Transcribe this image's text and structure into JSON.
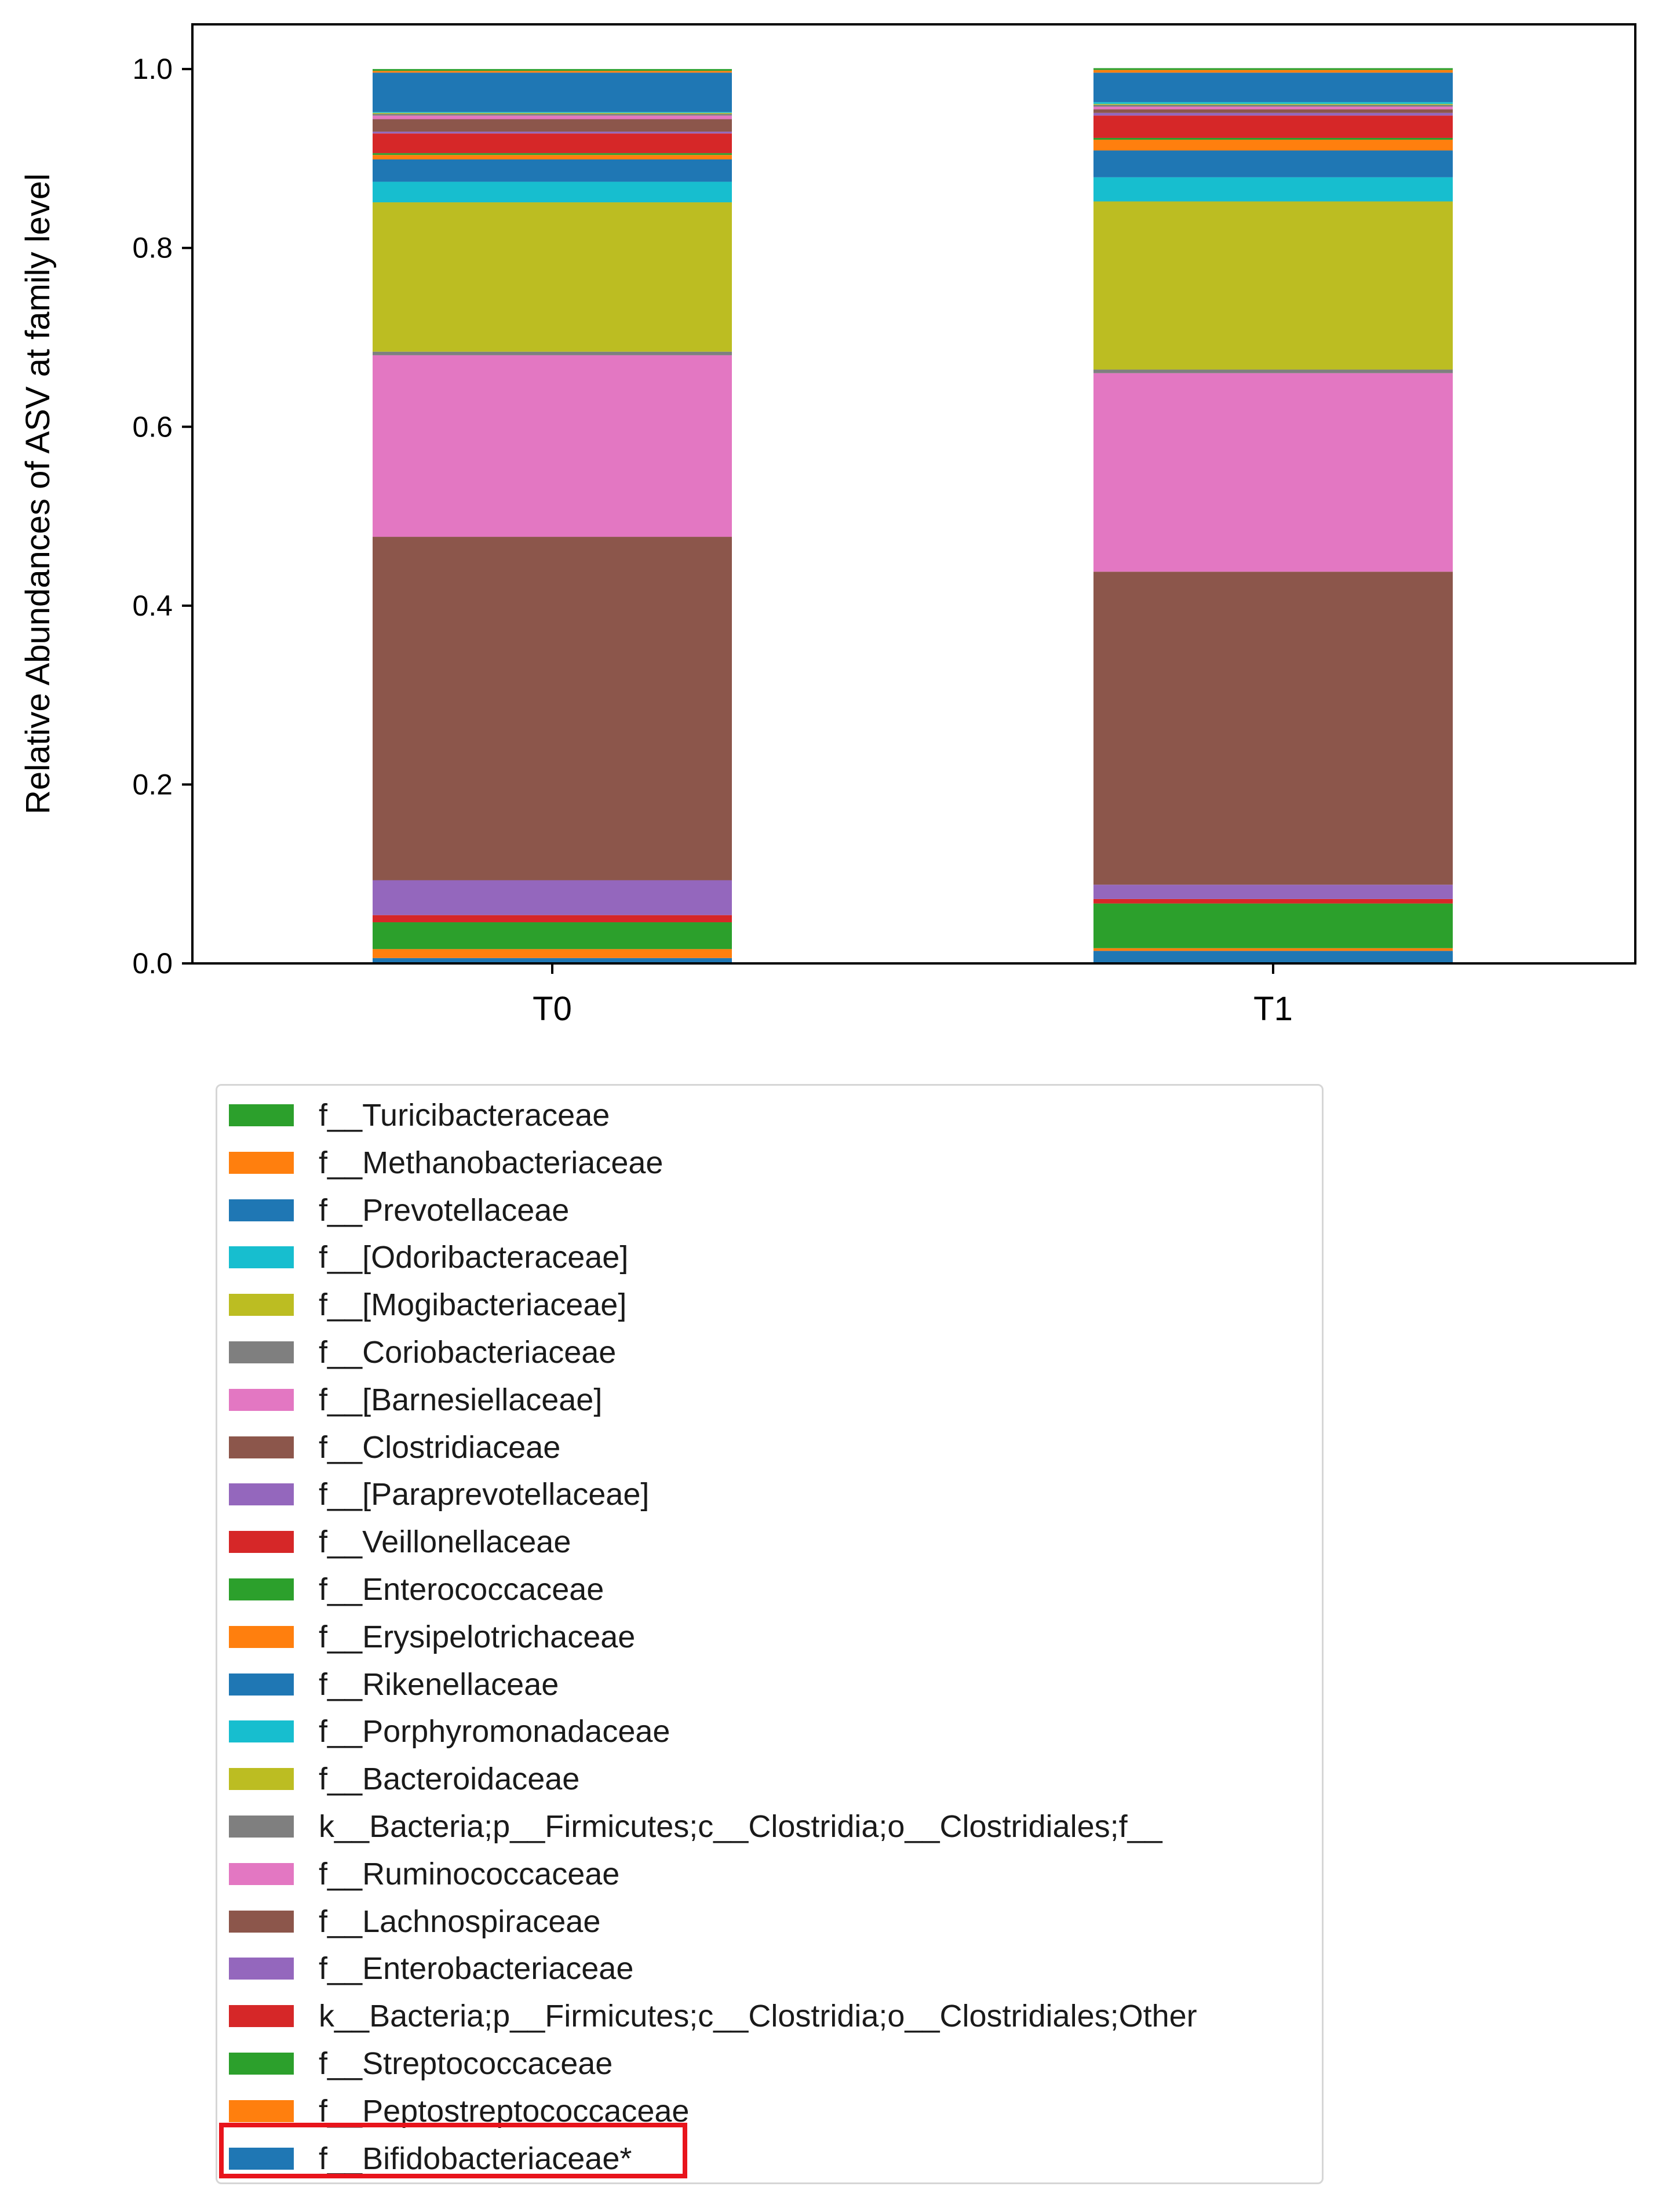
{
  "chart_data": {
    "type": "bar",
    "stacked": true,
    "title": "",
    "xlabel": "",
    "ylabel": "Relative Abundances of ASV at family level",
    "ylim": [
      0.0,
      1.05
    ],
    "yticks": [
      "0.0",
      "0.2",
      "0.4",
      "0.6",
      "0.8",
      "1.0"
    ],
    "categories": [
      "T0",
      "T1"
    ],
    "series": [
      {
        "name": "f__Bifidobacteriaceae*",
        "color": "#1f77b4",
        "values": [
          0.006,
          0.014
        ]
      },
      {
        "name": "f__Peptostreptococcaceae",
        "color": "#ff7f0e",
        "values": [
          0.01,
          0.003
        ]
      },
      {
        "name": "f__Streptococcaceae",
        "color": "#2ca02c",
        "values": [
          0.03,
          0.05
        ]
      },
      {
        "name": "k__Bacteria;p__Firmicutes;c__Clostridia;o__Clostridiales;Other",
        "color": "#d62728",
        "values": [
          0.008,
          0.005
        ]
      },
      {
        "name": "f__Enterobacteriaceae",
        "color": "#9467bd",
        "values": [
          0.039,
          0.016
        ]
      },
      {
        "name": "f__Lachnospiraceae",
        "color": "#8c564b",
        "values": [
          0.384,
          0.35
        ]
      },
      {
        "name": "f__Ruminococcaceae",
        "color": "#e377c2",
        "values": [
          0.203,
          0.222
        ]
      },
      {
        "name": "k__Bacteria;p__Firmicutes;c__Clostridia;o__Clostridiales;f__",
        "color": "#7f7f7f",
        "values": [
          0.004,
          0.004
        ]
      },
      {
        "name": "f__Bacteroidaceae",
        "color": "#bcbd22",
        "values": [
          0.167,
          0.188
        ]
      },
      {
        "name": "f__Porphyromonadaceae",
        "color": "#17becf",
        "values": [
          0.023,
          0.027
        ]
      },
      {
        "name": "f__Rikenellaceae",
        "color": "#1f77b4",
        "values": [
          0.025,
          0.03
        ]
      },
      {
        "name": "f__Erysipelotrichaceae",
        "color": "#ff7f0e",
        "values": [
          0.005,
          0.012
        ]
      },
      {
        "name": "f__Enterococcaceae",
        "color": "#2ca02c",
        "values": [
          0.002,
          0.002
        ]
      },
      {
        "name": "f__Veillonellaceae",
        "color": "#d62728",
        "values": [
          0.022,
          0.025
        ]
      },
      {
        "name": "f__[Paraprevotellaceae]",
        "color": "#9467bd",
        "values": [
          0.002,
          0.003
        ]
      },
      {
        "name": "f__Clostridiaceae",
        "color": "#8c564b",
        "values": [
          0.014,
          0.004
        ]
      },
      {
        "name": "f__[Barnesiellaceae]",
        "color": "#e377c2",
        "values": [
          0.004,
          0.003
        ]
      },
      {
        "name": "f__Coriobacteriaceae",
        "color": "#7f7f7f",
        "values": [
          0.002,
          0.002
        ]
      },
      {
        "name": "f__[Mogibacteriaceae]",
        "color": "#bcbd22",
        "values": [
          0.001,
          0.001
        ]
      },
      {
        "name": "f__[Odoribacteraceae]",
        "color": "#17becf",
        "values": [
          0.001,
          0.002
        ]
      },
      {
        "name": "f__Prevotellaceae",
        "color": "#1f77b4",
        "values": [
          0.044,
          0.033
        ]
      },
      {
        "name": "f__Methanobacteriaceae",
        "color": "#ff7f0e",
        "values": [
          0.002,
          0.003
        ]
      },
      {
        "name": "f__Turicibacteraceae",
        "color": "#2ca02c",
        "values": [
          0.002,
          0.002
        ]
      }
    ],
    "legend": {
      "placement": "below",
      "entries": [
        {
          "label": "f__Turicibacteraceae",
          "color": "#2ca02c"
        },
        {
          "label": "f__Methanobacteriaceae",
          "color": "#ff7f0e"
        },
        {
          "label": "f__Prevotellaceae",
          "color": "#1f77b4"
        },
        {
          "label": "f__[Odoribacteraceae]",
          "color": "#17becf"
        },
        {
          "label": "f__[Mogibacteriaceae]",
          "color": "#bcbd22"
        },
        {
          "label": "f__Coriobacteriaceae",
          "color": "#7f7f7f"
        },
        {
          "label": "f__[Barnesiellaceae]",
          "color": "#e377c2"
        },
        {
          "label": "f__Clostridiaceae",
          "color": "#8c564b"
        },
        {
          "label": "f__[Paraprevotellaceae]",
          "color": "#9467bd"
        },
        {
          "label": "f__Veillonellaceae",
          "color": "#d62728"
        },
        {
          "label": "f__Enterococcaceae",
          "color": "#2ca02c"
        },
        {
          "label": "f__Erysipelotrichaceae",
          "color": "#ff7f0e"
        },
        {
          "label": "f__Rikenellaceae",
          "color": "#1f77b4"
        },
        {
          "label": "f__Porphyromonadaceae",
          "color": "#17becf"
        },
        {
          "label": "f__Bacteroidaceae",
          "color": "#bcbd22"
        },
        {
          "label": "k__Bacteria;p__Firmicutes;c__Clostridia;o__Clostridiales;f__",
          "color": "#7f7f7f"
        },
        {
          "label": "f__Ruminococcaceae",
          "color": "#e377c2"
        },
        {
          "label": "f__Lachnospiraceae",
          "color": "#8c564b"
        },
        {
          "label": "f__Enterobacteriaceae",
          "color": "#9467bd"
        },
        {
          "label": "k__Bacteria;p__Firmicutes;c__Clostridia;o__Clostridiales;Other",
          "color": "#d62728"
        },
        {
          "label": "f__Streptococcaceae",
          "color": "#2ca02c"
        },
        {
          "label": "f__Peptostreptococcaceae",
          "color": "#ff7f0e"
        },
        {
          "label": "f__Bifidobacteriaceae*",
          "color": "#1f77b4"
        }
      ]
    },
    "highlight": {
      "label": "f__Bifidobacteriaceae*",
      "color": "#e8141c"
    }
  }
}
